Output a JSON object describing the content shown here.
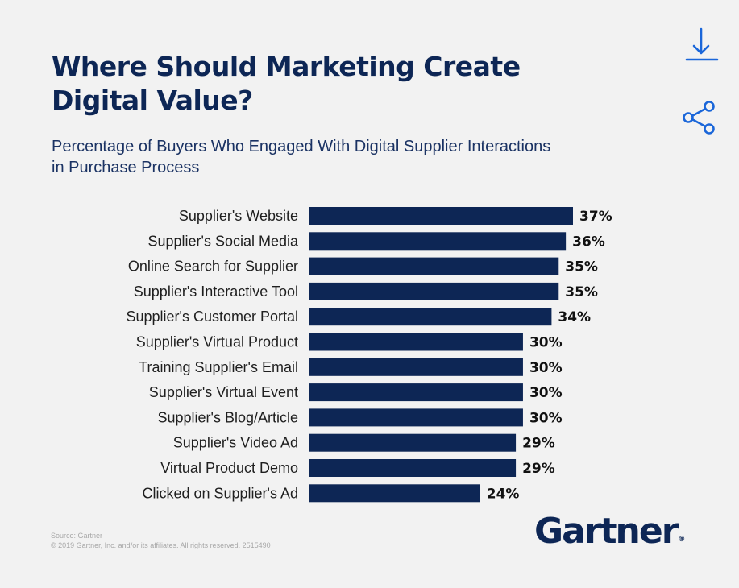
{
  "header": {
    "title": "Where Should Marketing Create Digital Value?",
    "subtitle": "Percentage of Buyers Who Engaged With Digital Supplier Interactions in Purchase Process"
  },
  "actions": {
    "download_icon": "download-icon",
    "share_icon": "share-icon",
    "accent_color": "#1a66d9"
  },
  "chart_data": {
    "type": "bar",
    "orientation": "horizontal",
    "title": "Where Should Marketing Create Digital Value?",
    "subtitle": "Percentage of Buyers Who Engaged With Digital Supplier Interactions in Purchase Process",
    "categories": [
      "Supplier's Website",
      "Supplier's Social Media",
      "Online Search for Supplier",
      "Supplier's Interactive Tool",
      "Supplier's Customer Portal",
      "Supplier's Virtual Product",
      "Training Supplier's Email",
      "Supplier's Virtual Event",
      "Supplier's Blog/Article",
      "Supplier's Video Ad",
      "Virtual Product Demo",
      "Clicked on Supplier's Ad"
    ],
    "values": [
      37,
      36,
      35,
      35,
      34,
      30,
      30,
      30,
      30,
      29,
      29,
      24
    ],
    "value_labels": [
      "37%",
      "36%",
      "35%",
      "35%",
      "34%",
      "30%",
      "30%",
      "30%",
      "30%",
      "29%",
      "29%",
      "24%"
    ],
    "bar_color": "#0d2655",
    "xlabel": "",
    "ylabel": "",
    "grid": false,
    "legend": "none"
  },
  "footer": {
    "source": "Source: Gartner",
    "copyright": "© 2019 Gartner, Inc. and/or its affiliates. All rights reserved. 2515490",
    "logo_text": "Gartner",
    "logo_reg": "®"
  }
}
